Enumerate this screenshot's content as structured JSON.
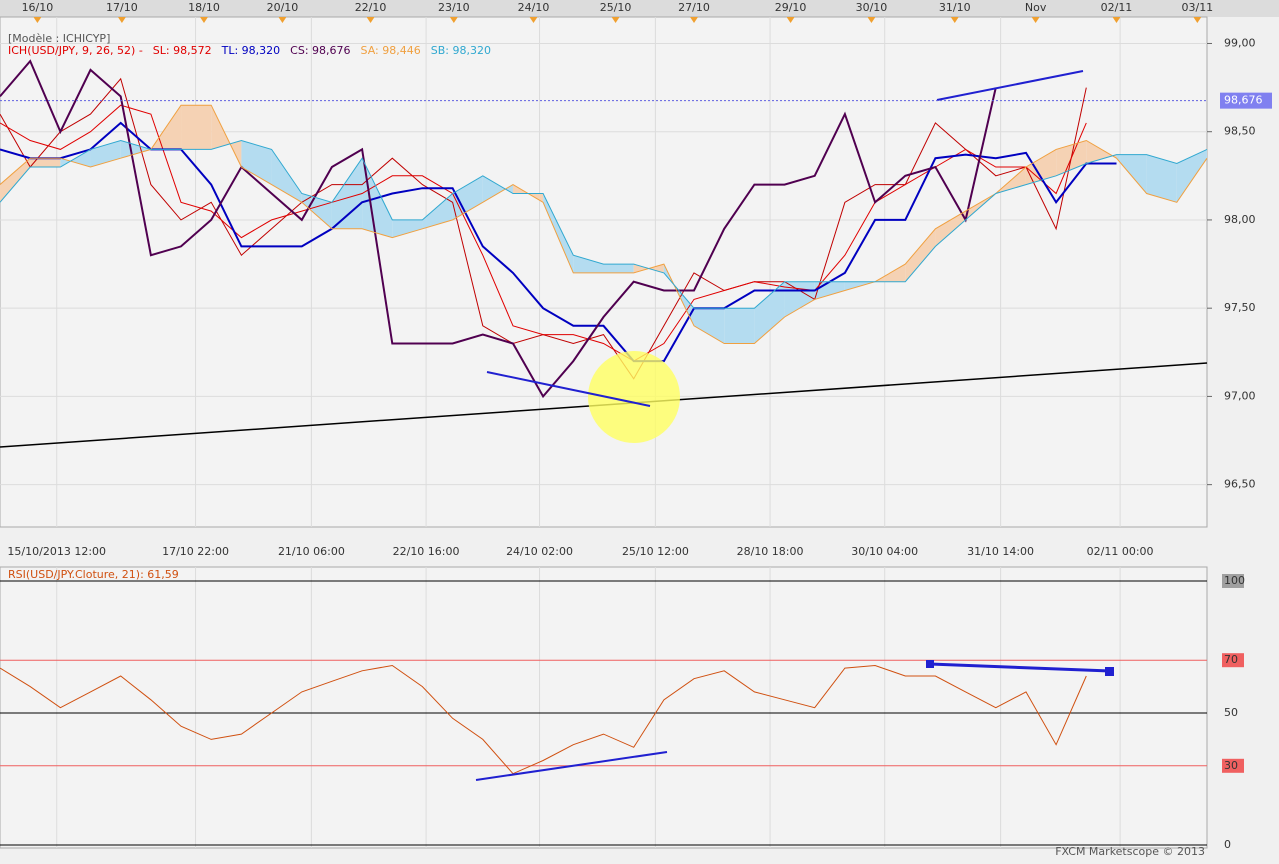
{
  "chart_data": [
    {
      "type": "ichimoku",
      "title": "[Modèle : ICHICYP]",
      "subtitle": "ICH(USD/JPY, 9, 26, 52) -",
      "xlim": [
        0,
        100
      ],
      "ylim": [
        96.26,
        99.15
      ],
      "yticks": [
        {
          "value": 96.5,
          "label": "96,50"
        },
        {
          "value": 97,
          "label": "97,00"
        },
        {
          "value": 97.5,
          "label": "97,50"
        },
        {
          "value": 98,
          "label": "98,00"
        },
        {
          "value": 98.5,
          "label": "98,50"
        },
        {
          "value": 99,
          "label": "99,00"
        }
      ],
      "xticks_top": [
        {
          "value": 3.1,
          "label": "16/10"
        },
        {
          "value": 10.1,
          "label": "17/10"
        },
        {
          "value": 16.9,
          "label": "18/10"
        },
        {
          "value": 23.4,
          "label": "20/10"
        },
        {
          "value": 30.7,
          "label": "22/10"
        },
        {
          "value": 37.6,
          "label": "23/10"
        },
        {
          "value": 44.2,
          "label": "24/10"
        },
        {
          "value": 51.0,
          "label": "25/10"
        },
        {
          "value": 57.5,
          "label": "27/10"
        },
        {
          "value": 65.5,
          "label": "29/10"
        },
        {
          "value": 72.2,
          "label": "30/10"
        },
        {
          "value": 79.1,
          "label": "31/10"
        },
        {
          "value": 85.8,
          "label": "Nov"
        },
        {
          "value": 92.5,
          "label": "02/11"
        },
        {
          "value": 99.2,
          "label": "03/11"
        }
      ],
      "xticks": [
        {
          "value": 4.7,
          "label": "15/10/2013 12:00"
        },
        {
          "value": 16.2,
          "label": "17/10 22:00"
        },
        {
          "value": 25.8,
          "label": "21/10 06:00"
        },
        {
          "value": 35.3,
          "label": "22/10 16:00"
        },
        {
          "value": 44.7,
          "label": "24/10 02:00"
        },
        {
          "value": 54.3,
          "label": "25/10 12:00"
        },
        {
          "value": 63.8,
          "label": "28/10 18:00"
        },
        {
          "value": 73.3,
          "label": "30/10 04:00"
        },
        {
          "value": 82.9,
          "label": "31/10 14:00"
        },
        {
          "value": 92.8,
          "label": "02/11 00:00"
        }
      ],
      "last_price": {
        "value": 98.676,
        "label": "98,676"
      },
      "grid": true,
      "x": [
        0,
        2.5,
        5,
        7.5,
        10,
        12.5,
        15,
        17.5,
        20,
        22.5,
        25,
        27.5,
        30,
        32.5,
        35,
        37.5,
        40,
        42.5,
        45,
        47.5,
        50,
        52.5,
        55,
        57.5,
        60,
        62.5,
        65,
        67.5,
        70,
        72.5,
        75,
        77.5,
        80,
        82.5,
        85,
        87.5,
        90,
        92.5,
        95,
        97.5,
        100
      ],
      "price": {
        "color": "#c00000",
        "values": [
          98.6,
          98.3,
          98.5,
          98.6,
          98.8,
          98.2,
          98.0,
          98.1,
          97.8,
          97.95,
          98.1,
          98.2,
          98.2,
          98.35,
          98.2,
          98.1,
          97.4,
          97.3,
          97.35,
          97.3,
          97.35,
          97.1,
          97.4,
          97.7,
          97.6,
          97.65,
          97.65,
          97.55,
          98.1,
          98.2,
          98.2,
          98.55,
          98.4,
          98.25,
          98.3,
          97.95,
          98.75,
          null,
          null,
          null,
          null
        ]
      },
      "series": [
        {
          "name": "SL: 98,572",
          "color": "#e00000",
          "values": [
            98.55,
            98.45,
            98.4,
            98.5,
            98.65,
            98.6,
            98.1,
            98.05,
            97.9,
            98.0,
            98.05,
            98.1,
            98.15,
            98.25,
            98.25,
            98.15,
            97.8,
            97.4,
            97.35,
            97.35,
            97.3,
            97.2,
            97.3,
            97.55,
            97.6,
            97.65,
            97.62,
            97.6,
            97.8,
            98.1,
            98.2,
            98.3,
            98.4,
            98.3,
            98.3,
            98.15,
            98.55,
            null,
            null,
            null,
            null
          ]
        },
        {
          "name": "TL: 98,320",
          "color": "#0000c0",
          "values": [
            98.4,
            98.35,
            98.35,
            98.4,
            98.55,
            98.4,
            98.4,
            98.2,
            97.85,
            97.85,
            97.85,
            97.95,
            98.1,
            98.15,
            98.18,
            98.18,
            97.85,
            97.7,
            97.5,
            97.4,
            97.4,
            97.2,
            97.2,
            97.5,
            97.5,
            97.6,
            97.6,
            97.6,
            97.7,
            98.0,
            98.0,
            98.35,
            98.37,
            98.35,
            98.38,
            98.1,
            98.32,
            98.32,
            null,
            null,
            null
          ]
        },
        {
          "name": "CS: 98,676",
          "color": "#500050",
          "values": [
            98.7,
            98.9,
            98.5,
            98.85,
            98.7,
            97.8,
            97.85,
            98.0,
            98.3,
            98.15,
            98.0,
            98.3,
            98.4,
            97.3,
            97.3,
            97.3,
            97.35,
            97.3,
            97.0,
            97.2,
            97.45,
            97.65,
            97.6,
            97.6,
            97.95,
            98.2,
            98.2,
            98.25,
            98.6,
            98.1,
            98.25,
            98.3,
            98.0,
            98.75,
            null,
            null,
            null,
            null,
            null,
            null,
            null
          ]
        },
        {
          "name": "SA: 98,446",
          "color": "#f0a040",
          "values": [
            98.2,
            98.35,
            98.35,
            98.3,
            98.35,
            98.4,
            98.65,
            98.65,
            98.3,
            98.2,
            98.1,
            97.95,
            97.95,
            97.9,
            97.95,
            98.0,
            98.1,
            98.2,
            98.1,
            97.7,
            97.7,
            97.7,
            97.75,
            97.4,
            97.3,
            97.3,
            97.45,
            97.55,
            97.6,
            97.65,
            97.75,
            97.95,
            98.05,
            98.15,
            98.3,
            98.4,
            98.45,
            98.35,
            98.15,
            98.1,
            98.35
          ]
        },
        {
          "name": "SB: 98,320",
          "color": "#30a8d0",
          "values": [
            98.1,
            98.3,
            98.3,
            98.4,
            98.45,
            98.4,
            98.4,
            98.4,
            98.45,
            98.4,
            98.15,
            98.1,
            98.35,
            98.0,
            98.0,
            98.15,
            98.25,
            98.15,
            98.15,
            97.8,
            97.75,
            97.75,
            97.7,
            97.5,
            97.5,
            97.5,
            97.65,
            97.65,
            97.65,
            97.65,
            97.65,
            97.85,
            98.0,
            98.15,
            98.2,
            98.25,
            98.32,
            98.37,
            98.37,
            98.32,
            98.4
          ]
        }
      ],
      "cloud_colors": [
        "#f5d2b4",
        "#b4dcf0"
      ]
    },
    {
      "type": "rsi",
      "title": "RSI(USD/JPY.Cloture, 21): 61,59",
      "xlim": [
        0,
        100
      ],
      "ylim": [
        0,
        100
      ],
      "yticks": [
        0,
        30,
        50,
        70,
        100
      ],
      "ytick_colors": [
        "none",
        "#f06060",
        "none",
        "#f06060",
        "#a0a0a0"
      ],
      "x": [
        0,
        2.5,
        5,
        7.5,
        10,
        12.5,
        15,
        17.5,
        20,
        22.5,
        25,
        27.5,
        30,
        32.5,
        35,
        37.5,
        40,
        42.5,
        45,
        47.5,
        50,
        52.5,
        55,
        57.5,
        60,
        62.5,
        65,
        67.5,
        70,
        72.5,
        75,
        77.5,
        80,
        82.5,
        85,
        87.5,
        90,
        92.5,
        95,
        97.5,
        100
      ],
      "series": [
        {
          "color": "#d05010",
          "values": [
            67,
            60,
            52,
            58,
            64,
            55,
            45,
            40,
            42,
            50,
            58,
            62,
            66,
            68,
            60,
            48,
            40,
            27,
            32,
            38,
            42,
            37,
            55,
            63,
            66,
            58,
            55,
            52,
            67,
            68,
            64,
            64,
            58,
            52,
            58,
            38,
            64,
            null,
            null,
            null,
            null
          ]
        }
      ],
      "footer": "FXCM Marketscope © 2013"
    }
  ]
}
